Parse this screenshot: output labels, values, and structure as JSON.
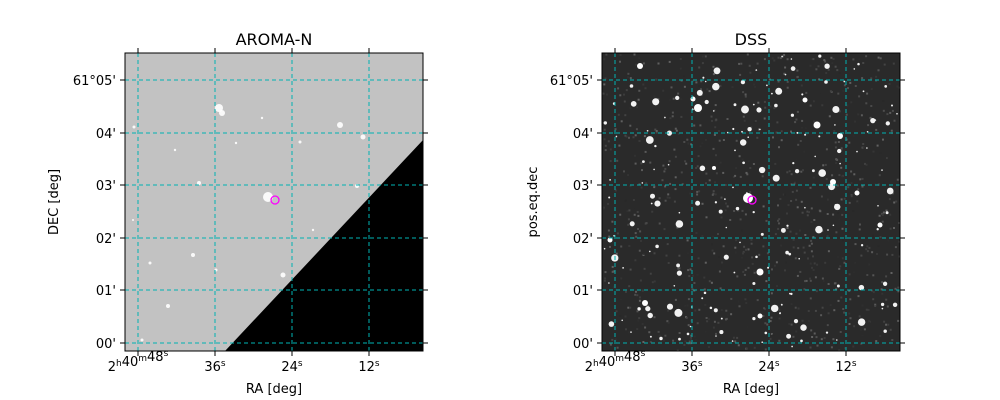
{
  "panels": [
    {
      "title": "AROMA-N",
      "xlabel": "RA [deg]",
      "ylabel": "DEC [deg]",
      "xticks": [
        {
          "main": "2",
          "sup": "h",
          "main2": "40",
          "sup2": "m",
          "main3": "48",
          "sup3": "s"
        },
        {
          "main": "36",
          "sup": "s"
        },
        {
          "main": "24",
          "sup": "s"
        },
        {
          "main": "12",
          "sup": "s"
        }
      ],
      "yticks": [
        "61°05'",
        "04'",
        "03'",
        "02'",
        "01'",
        "00'"
      ]
    },
    {
      "title": "DSS",
      "xlabel": "RA [deg]",
      "ylabel": "pos.eq.dec",
      "xticks": [
        {
          "main": "2",
          "sup": "h",
          "main2": "40",
          "sup2": "m",
          "main3": "48",
          "sup3": "s"
        },
        {
          "main": "36",
          "sup": "s"
        },
        {
          "main": "24",
          "sup": "s"
        },
        {
          "main": "12",
          "sup": "s"
        }
      ],
      "yticks": [
        "61°05'",
        "04'",
        "03'",
        "02'",
        "01'",
        "00'"
      ]
    }
  ],
  "colors": {
    "grid": "#00b3b3",
    "marker": "#ff00ff",
    "aroma_sky": "#c2c2c2",
    "aroma_mask": "#000000",
    "dss_sky": "#2a2a2a"
  }
}
